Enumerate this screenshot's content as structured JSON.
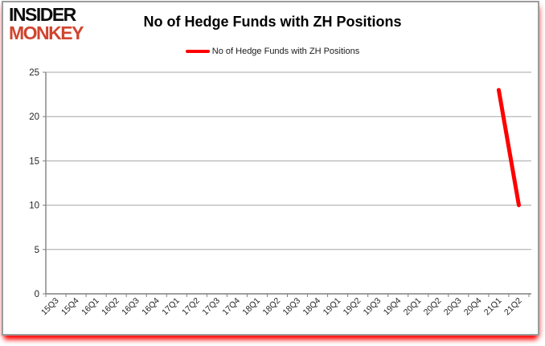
{
  "logo": {
    "line1": "INSIDER",
    "line2": "MONKEY",
    "line2_color": "#d0452f"
  },
  "header": {
    "title": "No of Hedge Funds with ZH Positions"
  },
  "legend": {
    "label": "No of Hedge Funds with ZH Positions",
    "swatch_color": "#ff0000"
  },
  "chart_data": {
    "type": "line",
    "title": "No of Hedge Funds with ZH Positions",
    "xlabel": "",
    "ylabel": "",
    "categories": [
      "15Q3",
      "15Q4",
      "16Q1",
      "16Q2",
      "16Q3",
      "16Q4",
      "17Q1",
      "17Q2",
      "17Q3",
      "17Q4",
      "18Q1",
      "18Q2",
      "18Q3",
      "18Q4",
      "19Q1",
      "19Q2",
      "19Q3",
      "19Q4",
      "20Q1",
      "20Q2",
      "20Q3",
      "20Q4",
      "21Q1",
      "21Q2"
    ],
    "series": [
      {
        "name": "No of Hedge Funds with ZH Positions",
        "color": "#ff0000",
        "values": [
          null,
          null,
          null,
          null,
          null,
          null,
          null,
          null,
          null,
          null,
          null,
          null,
          null,
          null,
          null,
          null,
          null,
          null,
          null,
          null,
          null,
          null,
          23,
          10
        ]
      }
    ],
    "ylim": [
      0,
      25
    ],
    "yticks": [
      0,
      5,
      10,
      15,
      20,
      25
    ],
    "grid": true,
    "legend_position": "top"
  },
  "colors": {
    "gridline": "#a6a6a6",
    "axis": "#808080",
    "tick_text": "#262626",
    "card_border": "#9c9c9c",
    "shadow": "#ff0000"
  }
}
